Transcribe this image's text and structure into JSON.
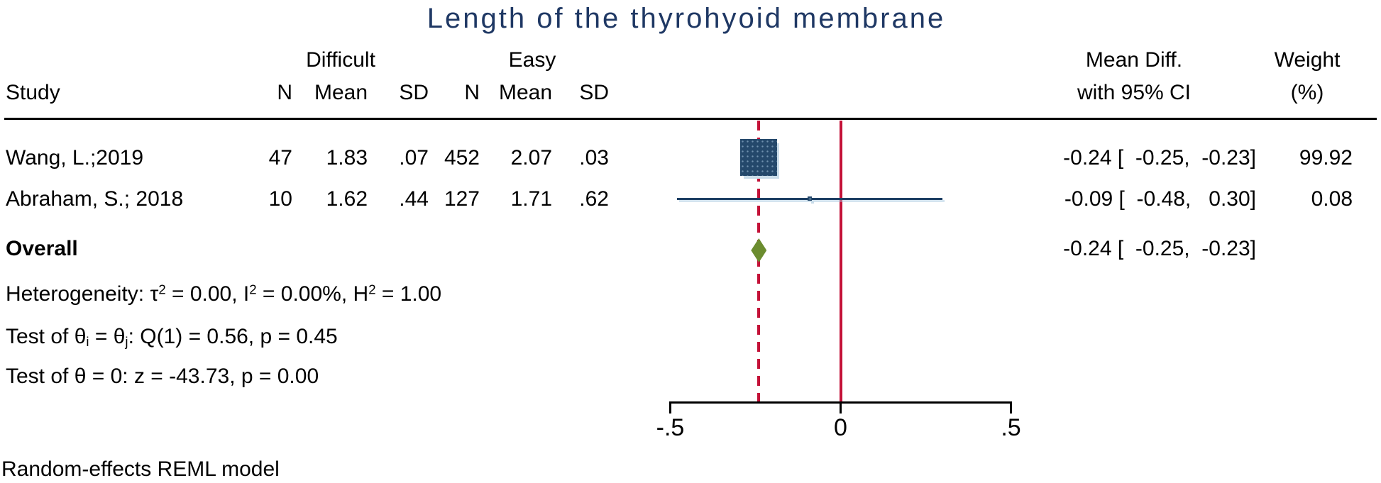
{
  "title": "Length of the thyrohyoid membrane",
  "header": {
    "study": "Study",
    "group1": "Difficult",
    "group2": "Easy",
    "n": "N",
    "mean": "Mean",
    "sd": "SD",
    "effect_line1": "Mean Diff.",
    "effect_line2": "with 95% CI",
    "weight_line1": "Weight",
    "weight_line2": "(%)"
  },
  "studies": [
    {
      "name": "Wang, L.;2019",
      "n_difficult": "47",
      "mean_difficult": "1.83",
      "sd_difficult": ".07",
      "n_easy": "452",
      "mean_easy": "2.07",
      "sd_easy": ".03",
      "effect": "-0.24 [  -0.25,  -0.23]",
      "weight": "99.92"
    },
    {
      "name": "Abraham, S.; 2018",
      "n_difficult": "10",
      "mean_difficult": "1.62",
      "sd_difficult": ".44",
      "n_easy": "127",
      "mean_easy": "1.71",
      "sd_easy": ".62",
      "effect": "-0.09 [  -0.48,   0.30]",
      "weight": "0.08"
    }
  ],
  "overall": {
    "label": "Overall",
    "effect": "-0.24 [  -0.25,  -0.23]"
  },
  "stats": {
    "heterogeneity": {
      "p1": "Heterogeneity: τ",
      "s1": "2",
      "p2": " = 0.00, I",
      "s2": "2",
      "p3": " = 0.00%, H",
      "s3": "2",
      "p4": " = 1.00"
    },
    "test_group": {
      "p1": "Test of θ",
      "sub1": "i",
      "p2": " = θ",
      "sub2": "j",
      "p3": ": Q(1) = 0.56, p = 0.45"
    },
    "test_zero": "Test of θ = 0: z = -43.73, p = 0.00"
  },
  "footer": "Random-effects REML model",
  "colors": {
    "title_navy": "#1f3864",
    "marker_navy": "#24486b",
    "ci_navy": "#1d3f63",
    "reference_red": "#c41238",
    "overall_olive": "#6b8c2f"
  },
  "chart_data": {
    "type": "forest",
    "title": "Length of the thyrohyoid membrane",
    "effect_label": "Mean Diff. with 95% CI",
    "x_axis": {
      "min": -0.5,
      "max": 0.5,
      "ticks": [
        -0.5,
        0,
        0.5
      ],
      "tick_labels": [
        "-.5",
        "0",
        ".5"
      ]
    },
    "null_line_x": 0,
    "pooled_line_x": -0.24,
    "studies": [
      {
        "name": "Wang, L.;2019",
        "estimate": -0.24,
        "ci_low": -0.25,
        "ci_high": -0.23,
        "weight_pct": 99.92
      },
      {
        "name": "Abraham, S.; 2018",
        "estimate": -0.09,
        "ci_low": -0.48,
        "ci_high": 0.3,
        "weight_pct": 0.08
      }
    ],
    "overall": {
      "estimate": -0.24,
      "ci_low": -0.25,
      "ci_high": -0.23
    },
    "heterogeneity": {
      "tau2": 0.0,
      "I2_pct": 0.0,
      "H2": 1.0
    },
    "test_group_diff": {
      "Q_df": 1,
      "Q": 0.56,
      "p": 0.45
    },
    "test_zero": {
      "z": -43.73,
      "p": 0.0
    },
    "model": "Random-effects REML model",
    "legend": "none",
    "grid": false
  }
}
